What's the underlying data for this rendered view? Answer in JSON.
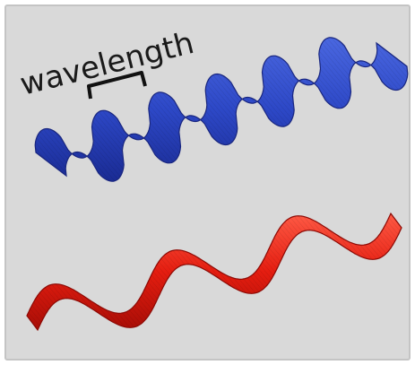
{
  "figure": {
    "label": "wavelength",
    "colors": {
      "background": "#d9d9d9",
      "border": "#c4c4c4",
      "blue_ribbon_light": "#3b5bd6",
      "blue_ribbon_dark": "#1c2f9c",
      "red_ribbon_light": "#ff3a2a",
      "red_ribbon_dark": "#b00f08",
      "bracket": "#111111"
    },
    "waves": [
      {
        "name": "short-wavelength-ribbon",
        "color": "blue",
        "crests": 6
      },
      {
        "name": "long-wavelength-ribbon",
        "color": "red",
        "crests": 3
      }
    ]
  }
}
